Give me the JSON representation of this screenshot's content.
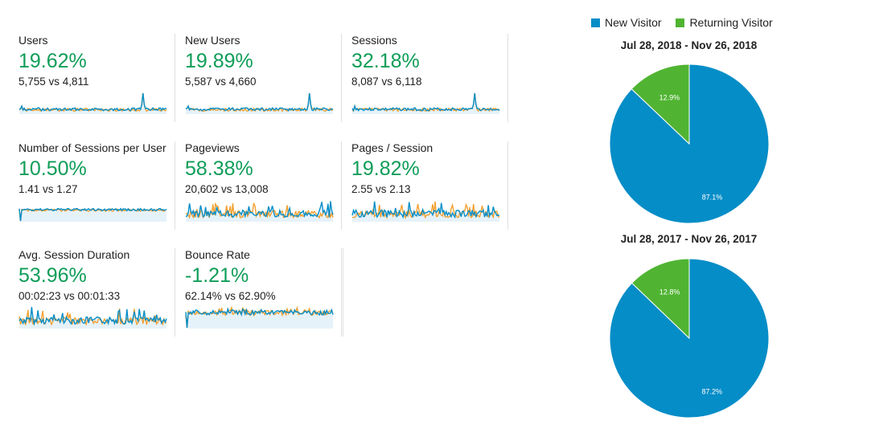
{
  "legend": {
    "new_label": "New Visitor",
    "returning_label": "Returning Visitor",
    "new_color": "#058dc7",
    "returning_color": "#50b432"
  },
  "metrics": [
    {
      "label": "Users",
      "change": "19.62%",
      "comparison": "5,755 vs 4,811"
    },
    {
      "label": "New Users",
      "change": "19.89%",
      "comparison": "5,587 vs 4,660"
    },
    {
      "label": "Sessions",
      "change": "32.18%",
      "comparison": "8,087 vs 6,118"
    },
    {
      "label": "Number of Sessions per User",
      "change": "10.50%",
      "comparison": "1.41 vs 1.27"
    },
    {
      "label": "Pageviews",
      "change": "58.38%",
      "comparison": "20,602 vs 13,008"
    },
    {
      "label": "Pages / Session",
      "change": "19.82%",
      "comparison": "2.55 vs 2.13"
    },
    {
      "label": "Avg. Session Duration",
      "change": "53.96%",
      "comparison": "00:02:23 vs 00:01:33"
    },
    {
      "label": "Bounce Rate",
      "change": "-1.21%",
      "comparison": "62.14% vs 62.90%"
    }
  ],
  "chart_data": [
    {
      "type": "pie",
      "title": "Jul 28, 2018 - Nov 26, 2018",
      "labels": [
        "New Visitor",
        "Returning Visitor"
      ],
      "values": [
        87.1,
        12.9
      ],
      "value_labels": [
        "87.1%",
        "12.9%"
      ]
    },
    {
      "type": "pie",
      "title": "Jul 28, 2017 - Nov 26, 2017",
      "labels": [
        "New Visitor",
        "Returning Visitor"
      ],
      "values": [
        87.2,
        12.8
      ],
      "value_labels": [
        "87.2%",
        "12.8%"
      ]
    }
  ]
}
